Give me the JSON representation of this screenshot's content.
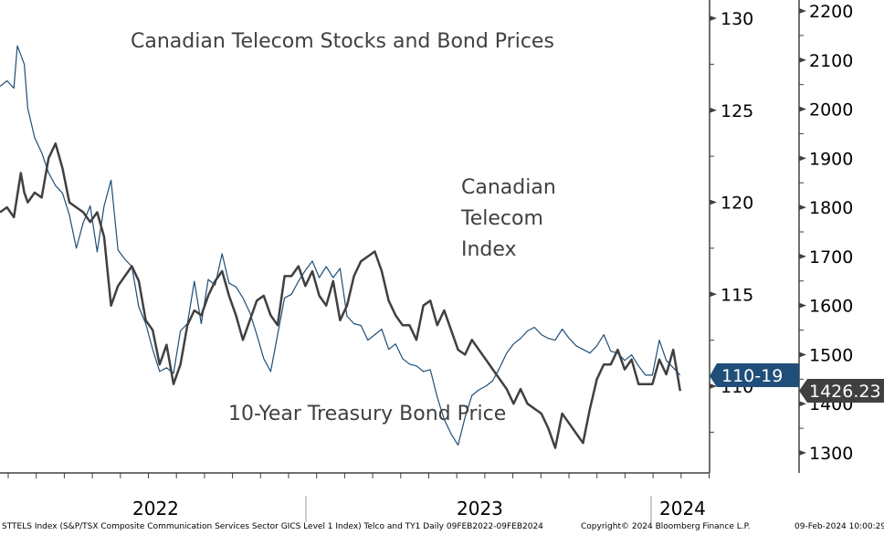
{
  "chart_data": {
    "type": "line",
    "title": "Canadian Telecom Stocks and Bond Prices",
    "annotations": {
      "telecom_label": [
        "Canadian",
        "Telecom",
        "Index"
      ],
      "bond_label": "10-Year Treasury Bond Price"
    },
    "x_range": [
      "2022-02-09",
      "2024-02-09"
    ],
    "x_year_labels": [
      "2022",
      "2023",
      "2024"
    ],
    "left_axis": {
      "label": "10-Year Treasury Bond Price",
      "range": [
        106.5,
        131
      ],
      "ticks": [
        110,
        115,
        120,
        125,
        130
      ],
      "last_value_label": "110-19"
    },
    "right_axis": {
      "label": "Canadian Telecom Index",
      "range": [
        1230,
        2225
      ],
      "ticks": [
        1300,
        1400,
        1500,
        1600,
        1700,
        1800,
        1900,
        2000,
        2100,
        2200
      ],
      "last_value_label": "1426.23"
    },
    "series": [
      {
        "name": "10-Year Treasury Bond Price",
        "axis": "left",
        "color": "#1f4e79",
        "x": [
          0,
          0.01,
          0.02,
          0.025,
          0.035,
          0.04,
          0.05,
          0.06,
          0.07,
          0.08,
          0.09,
          0.1,
          0.11,
          0.12,
          0.13,
          0.14,
          0.15,
          0.16,
          0.17,
          0.18,
          0.19,
          0.2,
          0.21,
          0.22,
          0.23,
          0.24,
          0.25,
          0.26,
          0.27,
          0.28,
          0.29,
          0.3,
          0.31,
          0.32,
          0.33,
          0.34,
          0.35,
          0.36,
          0.37,
          0.38,
          0.39,
          0.4,
          0.41,
          0.42,
          0.43,
          0.44,
          0.45,
          0.46,
          0.47,
          0.48,
          0.49,
          0.5,
          0.51,
          0.52,
          0.53,
          0.54,
          0.55,
          0.56,
          0.57,
          0.58,
          0.59,
          0.6,
          0.61,
          0.62,
          0.63,
          0.64,
          0.65,
          0.66,
          0.67,
          0.68,
          0.69,
          0.7,
          0.71,
          0.72,
          0.73,
          0.74,
          0.75,
          0.76,
          0.77,
          0.78,
          0.79,
          0.8,
          0.81,
          0.82,
          0.83,
          0.84,
          0.85,
          0.86,
          0.87,
          0.88,
          0.89,
          0.9,
          0.91,
          0.92,
          0.93,
          0.94,
          0.95,
          0.96,
          0.97,
          0.98
        ],
        "values": [
          126.3,
          126.6,
          126.2,
          128.5,
          127.5,
          125.1,
          123.5,
          122.7,
          121.6,
          120.9,
          120.5,
          119.3,
          117.5,
          118.9,
          119.8,
          117.3,
          119.8,
          121.2,
          117.4,
          116.9,
          116.5,
          114.3,
          113.4,
          112.0,
          110.8,
          111.0,
          110.7,
          113.0,
          113.4,
          115.7,
          113.4,
          115.8,
          115.5,
          117.2,
          115.6,
          115.4,
          114.8,
          114.0,
          112.8,
          111.5,
          110.8,
          112.8,
          114.8,
          115.0,
          115.7,
          116.3,
          116.8,
          115.9,
          116.5,
          115.9,
          116.4,
          113.8,
          113.4,
          113.3,
          112.5,
          112.8,
          113.1,
          112.0,
          112.3,
          111.5,
          111.2,
          111.1,
          110.8,
          110.9,
          109.4,
          108.2,
          107.4,
          106.8,
          108.3,
          109.5,
          109.8,
          110.0,
          110.3,
          111.0,
          111.8,
          112.3,
          112.6,
          113.0,
          113.2,
          112.8,
          112.6,
          112.5,
          113.1,
          112.6,
          112.2,
          112.0,
          111.8,
          112.2,
          112.8,
          111.9,
          111.8,
          111.4,
          111.7,
          111.1,
          110.6,
          110.6,
          112.5,
          111.4,
          111.0,
          110.6
        ]
      },
      {
        "name": "Canadian Telecom Index",
        "axis": "right",
        "color": "#404040",
        "x": [
          0,
          0.01,
          0.02,
          0.03,
          0.035,
          0.04,
          0.05,
          0.06,
          0.07,
          0.08,
          0.09,
          0.1,
          0.11,
          0.12,
          0.13,
          0.14,
          0.15,
          0.16,
          0.17,
          0.18,
          0.19,
          0.2,
          0.21,
          0.22,
          0.23,
          0.24,
          0.25,
          0.26,
          0.27,
          0.28,
          0.29,
          0.3,
          0.31,
          0.32,
          0.33,
          0.34,
          0.35,
          0.36,
          0.37,
          0.38,
          0.39,
          0.4,
          0.41,
          0.42,
          0.43,
          0.44,
          0.45,
          0.46,
          0.47,
          0.48,
          0.49,
          0.5,
          0.51,
          0.52,
          0.53,
          0.54,
          0.55,
          0.56,
          0.57,
          0.58,
          0.59,
          0.6,
          0.61,
          0.62,
          0.63,
          0.64,
          0.65,
          0.66,
          0.67,
          0.68,
          0.69,
          0.7,
          0.71,
          0.72,
          0.73,
          0.74,
          0.75,
          0.76,
          0.77,
          0.78,
          0.79,
          0.8,
          0.81,
          0.82,
          0.83,
          0.84,
          0.85,
          0.86,
          0.87,
          0.88,
          0.89,
          0.9,
          0.91,
          0.92,
          0.93,
          0.94,
          0.95,
          0.96,
          0.97,
          0.98
        ],
        "values": [
          1790,
          1800,
          1780,
          1870,
          1830,
          1810,
          1830,
          1820,
          1900,
          1930,
          1880,
          1810,
          1800,
          1790,
          1770,
          1790,
          1740,
          1600,
          1640,
          1660,
          1680,
          1650,
          1570,
          1550,
          1480,
          1520,
          1440,
          1480,
          1560,
          1590,
          1580,
          1620,
          1650,
          1670,
          1620,
          1580,
          1530,
          1570,
          1610,
          1620,
          1580,
          1560,
          1660,
          1660,
          1680,
          1640,
          1670,
          1620,
          1600,
          1650,
          1570,
          1600,
          1660,
          1690,
          1700,
          1710,
          1670,
          1610,
          1580,
          1560,
          1560,
          1530,
          1600,
          1610,
          1560,
          1590,
          1550,
          1510,
          1500,
          1530,
          1510,
          1490,
          1470,
          1450,
          1430,
          1400,
          1430,
          1400,
          1390,
          1380,
          1350,
          1310,
          1380,
          1360,
          1340,
          1320,
          1390,
          1450,
          1480,
          1480,
          1510,
          1470,
          1490,
          1440,
          1440,
          1440,
          1490,
          1460,
          1510,
          1426
        ]
      }
    ]
  },
  "footer": {
    "source": "STTELS Index (S&P/TSX Composite Communication Services Sector GICS Level 1 Index) Telco and TY1  Daily 09FEB2022-09FEB2024",
    "copyright": "Copyright© 2024 Bloomberg Finance L.P.",
    "timestamp": "09-Feb-2024 10:00:29"
  }
}
